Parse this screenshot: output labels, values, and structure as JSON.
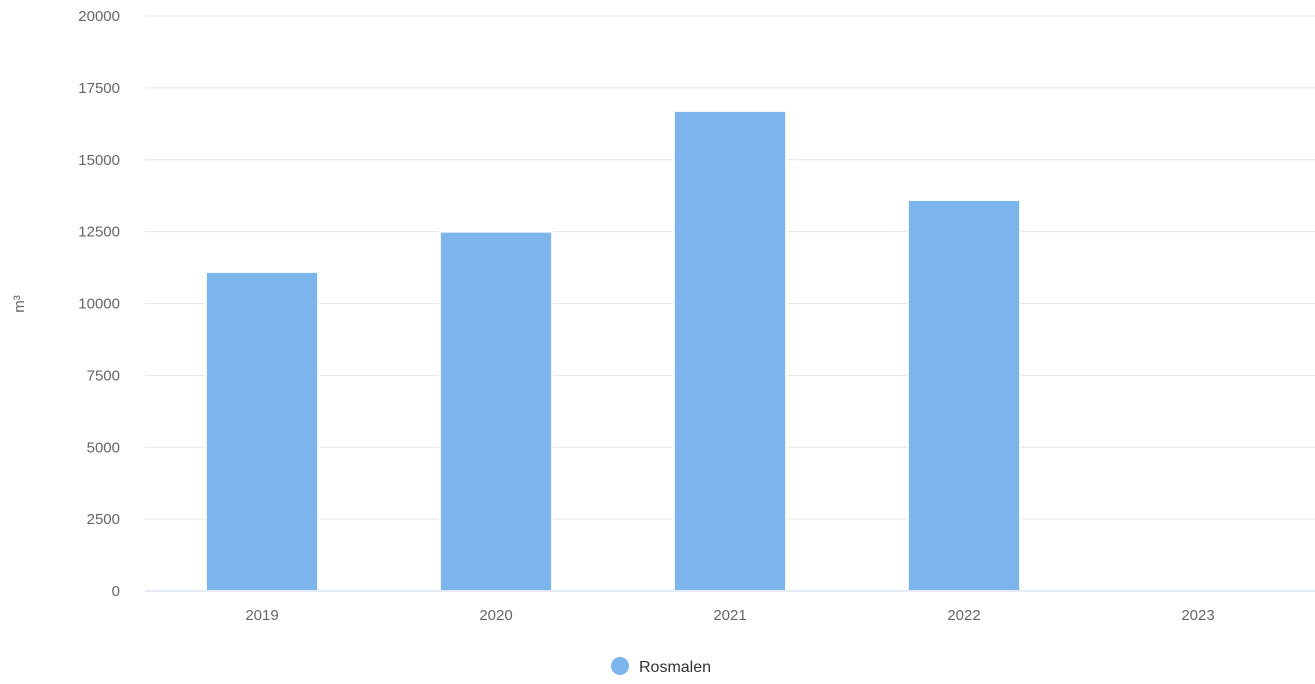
{
  "chart_data": {
    "type": "bar",
    "title": "",
    "xlabel": "",
    "ylabel": "m³",
    "categories": [
      "2019",
      "2020",
      "2021",
      "2022",
      "2023"
    ],
    "series": [
      {
        "name": "Rosmalen",
        "color": "#7cb5ec",
        "values": [
          11100,
          12500,
          16700,
          13600,
          null
        ]
      }
    ],
    "ylim": [
      0,
      20000
    ],
    "yticks": [
      0,
      2500,
      5000,
      7500,
      10000,
      12500,
      15000,
      17500,
      20000
    ],
    "ytick_labels": [
      "0",
      "2500",
      "5000",
      "7500",
      "10000",
      "12500",
      "15000",
      "17500",
      "20000"
    ],
    "grid": true,
    "legend_position": "bottom-center"
  }
}
